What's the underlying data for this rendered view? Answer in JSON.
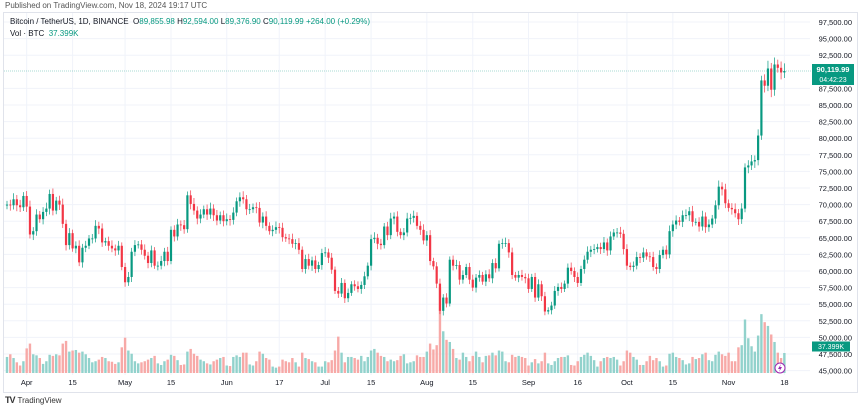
{
  "header": {
    "published": "Published on TradingView.com, Nov 18, 2024 19:17 UTC"
  },
  "legend": {
    "symbol": "Bitcoin / TetherUS, 1D, BINANCE",
    "open_label": "O",
    "open": "89,855.98",
    "high_label": "H",
    "high": "92,594.00",
    "low_label": "L",
    "low": "89,376.90",
    "close_label": "C",
    "close": "90,119.99",
    "change": "+264.00 (+0.29%)",
    "vol_label": "Vol · BTC",
    "vol": "37.399K"
  },
  "last_price": {
    "price": "90,119.99",
    "countdown": "04:42:23",
    "volume": "37.399K"
  },
  "brand": {
    "name": "TradingView",
    "icon": "tradingview-logo"
  },
  "colors": {
    "up": "#089981",
    "down": "#f23645",
    "vol_up": "#92d2cc",
    "vol_down": "#f7a9a7",
    "accent": "#089981"
  },
  "chart_data": {
    "type": "candlestick",
    "ylim": [
      45000,
      97500
    ],
    "price_ticks": [
      "97,500.00",
      "95,000.00",
      "92,500.00",
      "87,500.00",
      "85,000.00",
      "82,500.00",
      "80,000.00",
      "77,500.00",
      "75,000.00",
      "72,500.00",
      "70,000.00",
      "67,500.00",
      "65,000.00",
      "62,500.00",
      "60,000.00",
      "57,500.00",
      "55,000.00",
      "52,500.00",
      "50,000.00",
      "47,500.00",
      "45,000.00"
    ],
    "x_ticks": [
      {
        "label": "Apr",
        "date": "2024-04-01"
      },
      {
        "label": "15",
        "date": "2024-04-15"
      },
      {
        "label": "May",
        "date": "2024-05-01"
      },
      {
        "label": "15",
        "date": "2024-05-15"
      },
      {
        "label": "Jun",
        "date": "2024-06-01"
      },
      {
        "label": "17",
        "date": "2024-06-17"
      },
      {
        "label": "Jul",
        "date": "2024-07-01"
      },
      {
        "label": "15",
        "date": "2024-07-15"
      },
      {
        "label": "Aug",
        "date": "2024-08-01"
      },
      {
        "label": "15",
        "date": "2024-08-15"
      },
      {
        "label": "Sep",
        "date": "2024-09-01"
      },
      {
        "label": "16",
        "date": "2024-09-16"
      },
      {
        "label": "Oct",
        "date": "2024-10-01"
      },
      {
        "label": "15",
        "date": "2024-10-15"
      },
      {
        "label": "Nov",
        "date": "2024-11-01"
      },
      {
        "label": "18",
        "date": "2024-11-18"
      }
    ],
    "closes_k": [
      70.0,
      69.9,
      70.8,
      69.9,
      69.6,
      71.3,
      69.7,
      65.5,
      66.0,
      68.5,
      67.8,
      68.9,
      69.4,
      71.6,
      69.1,
      70.6,
      70.0,
      67.1,
      63.9,
      65.7,
      63.4,
      63.8,
      61.3,
      63.5,
      63.8,
      64.9,
      64.9,
      66.8,
      66.4,
      64.3,
      64.5,
      63.8,
      63.4,
      63.1,
      63.8,
      60.6,
      58.3,
      59.1,
      62.9,
      63.9,
      64.0,
      63.2,
      62.3,
      61.2,
      63.1,
      60.8,
      60.8,
      61.5,
      62.9,
      61.5,
      66.2,
      65.2,
      67.0,
      66.9,
      66.3,
      71.4,
      70.1,
      69.1,
      67.9,
      68.5,
      69.3,
      68.5,
      69.4,
      68.4,
      67.6,
      68.4,
      67.5,
      67.8,
      67.7,
      68.8,
      70.5,
      71.1,
      70.8,
      69.3,
      69.3,
      69.6,
      69.5,
      67.3,
      68.2,
      66.8,
      66.0,
      66.2,
      66.6,
      66.5,
      65.1,
      64.9,
      64.8,
      64.1,
      64.2,
      63.2,
      60.3,
      61.8,
      60.8,
      61.6,
      60.3,
      60.9,
      62.7,
      62.8,
      62.0,
      60.2,
      57.0,
      56.6,
      58.2,
      55.9,
      56.7,
      58.0,
      57.7,
      57.3,
      57.9,
      59.2,
      60.8,
      64.8,
      65.0,
      64.1,
      63.9,
      66.7,
      65.4,
      67.9,
      68.2,
      65.9,
      65.4,
      65.8,
      67.9,
      68.0,
      68.3,
      66.8,
      66.2,
      64.6,
      65.4,
      61.5,
      60.7,
      58.1,
      54.0,
      56.0,
      55.1,
      61.7,
      60.8,
      60.9,
      58.7,
      59.4,
      60.6,
      58.7,
      57.5,
      59.0,
      59.4,
      58.4,
      59.5,
      58.9,
      61.2,
      60.4,
      64.1,
      64.2,
      64.2,
      62.8,
      59.4,
      59.0,
      59.4,
      59.1,
      58.9,
      57.3,
      59.1,
      56.0,
      58.0,
      56.2,
      53.9,
      54.1,
      54.8,
      57.0,
      57.6,
      57.3,
      58.1,
      60.5,
      60.0,
      59.1,
      58.2,
      60.3,
      61.7,
      62.9,
      63.2,
      63.3,
      63.6,
      63.3,
      64.3,
      63.1,
      65.2,
      65.8,
      65.8,
      65.6,
      63.3,
      60.8,
      60.6,
      60.8,
      62.1,
      62.0,
      62.8,
      62.2,
      62.1,
      60.6,
      60.3,
      62.4,
      63.2,
      62.5,
      66.0,
      67.0,
      67.6,
      67.4,
      68.4,
      68.4,
      69.0,
      67.4,
      67.4,
      66.7,
      68.2,
      66.6,
      67.0,
      67.9,
      69.9,
      72.7,
      72.3,
      70.2,
      69.5,
      69.3,
      68.7,
      67.8,
      69.4,
      75.6,
      75.9,
      76.5,
      76.7,
      80.4,
      88.7,
      87.9,
      90.5,
      87.3,
      91.1,
      90.6,
      89.9,
      90.12
    ],
    "volumes_k": [
      30,
      35,
      28,
      20,
      14,
      22,
      46,
      55,
      35,
      33,
      28,
      17,
      22,
      34,
      32,
      35,
      33,
      55,
      60,
      40,
      42,
      43,
      38,
      40,
      35,
      28,
      20,
      22,
      25,
      30,
      28,
      22,
      21,
      17,
      20,
      48,
      66,
      42,
      36,
      22,
      18,
      20,
      22,
      25,
      28,
      32,
      18,
      15,
      22,
      25,
      34,
      32,
      24,
      15,
      16,
      40,
      45,
      36,
      32,
      25,
      22,
      18,
      16,
      22,
      25,
      28,
      30,
      14,
      13,
      30,
      33,
      30,
      38,
      38,
      16,
      14,
      22,
      40,
      36,
      28,
      25,
      12,
      10,
      12,
      25,
      22,
      20,
      28,
      20,
      12,
      38,
      28,
      26,
      22,
      20,
      12,
      12,
      22,
      20,
      24,
      42,
      68,
      38,
      20,
      30,
      30,
      28,
      25,
      32,
      22,
      30,
      42,
      45,
      38,
      32,
      30,
      22,
      25,
      22,
      24,
      32,
      35,
      18,
      20,
      22,
      33,
      30,
      30,
      40,
      55,
      44,
      52,
      160,
      78,
      62,
      58,
      45,
      28,
      25,
      38,
      30,
      22,
      32,
      40,
      30,
      20,
      32,
      33,
      38,
      33,
      42,
      40,
      22,
      20,
      34,
      30,
      32,
      30,
      28,
      14,
      20,
      26,
      18,
      22,
      38,
      18,
      15,
      22,
      28,
      30,
      30,
      33,
      15,
      14,
      22,
      30,
      34,
      38,
      32,
      24,
      12,
      22,
      28,
      30,
      28,
      30,
      25,
      14,
      22,
      42,
      38,
      30,
      25,
      15,
      15,
      22,
      32,
      24,
      28,
      22,
      12,
      14,
      36,
      38,
      30,
      28,
      24,
      16,
      18,
      30,
      26,
      28,
      35,
      38,
      24,
      22,
      34,
      40,
      35,
      32,
      38,
      22,
      22,
      48,
      52,
      100,
      65,
      50,
      40,
      70,
      110,
      95,
      88,
      72,
      58,
      38,
      28,
      37.4
    ]
  }
}
